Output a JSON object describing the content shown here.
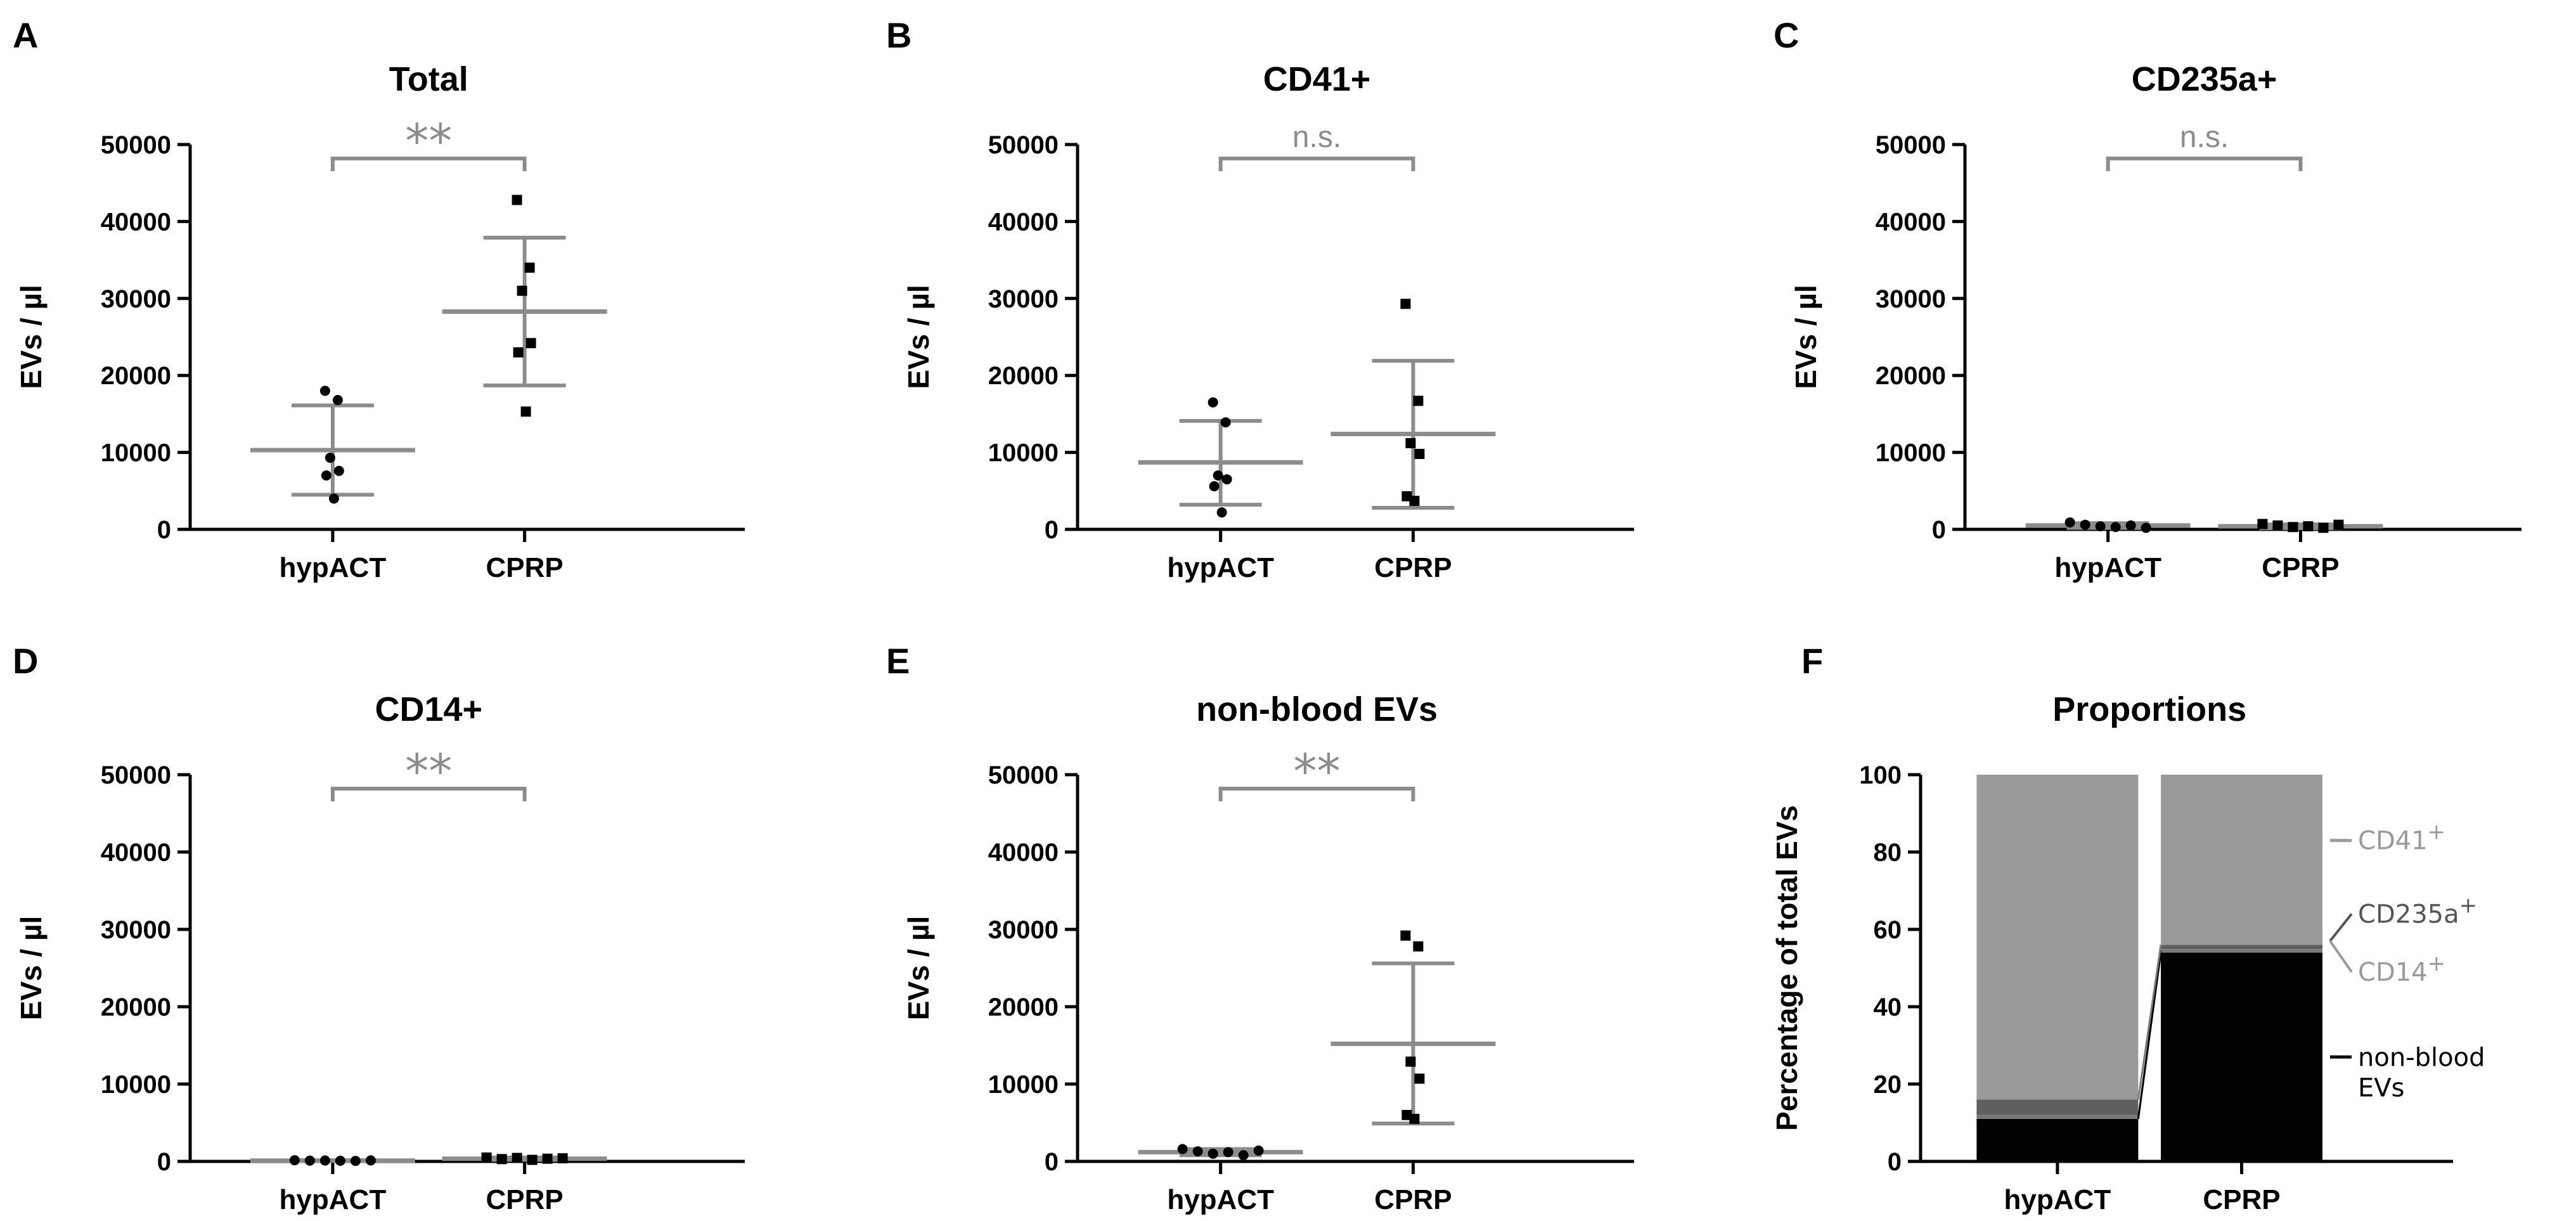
{
  "chart_data": [
    {
      "type": "scatter",
      "panel": "A",
      "title": "Total",
      "ylabel": "EVs / µl",
      "categories": [
        "hypACT",
        "CPRP"
      ],
      "ylim": [
        0,
        50000
      ],
      "yticks": [
        "0",
        "10000",
        "20000",
        "30000",
        "40000",
        "50000"
      ],
      "series": [
        {
          "name": "hypACT",
          "marker": "circle",
          "points": [
            18000,
            16800,
            9300,
            7600,
            7000,
            4000
          ],
          "mean": 10300,
          "sd_low": 4500,
          "sd_high": 16100
        },
        {
          "name": "CPRP",
          "marker": "square",
          "points": [
            42800,
            34000,
            31000,
            24200,
            23000,
            15300
          ],
          "mean": 28300,
          "sd_low": 18700,
          "sd_high": 37900
        }
      ],
      "significance": "**"
    },
    {
      "type": "scatter",
      "panel": "B",
      "title": "CD41+",
      "ylabel": "EVs / µl",
      "categories": [
        "hypACT",
        "CPRP"
      ],
      "ylim": [
        0,
        50000
      ],
      "yticks": [
        "0",
        "10000",
        "20000",
        "30000",
        "40000",
        "50000"
      ],
      "series": [
        {
          "name": "hypACT",
          "marker": "circle",
          "points": [
            16500,
            13900,
            7000,
            6500,
            5600,
            2200
          ],
          "mean": 8700,
          "sd_low": 3200,
          "sd_high": 14100
        },
        {
          "name": "CPRP",
          "marker": "square",
          "points": [
            29300,
            16700,
            11200,
            9800,
            4300,
            3700
          ],
          "mean": 12400,
          "sd_low": 2800,
          "sd_high": 21900
        }
      ],
      "significance": "n.s."
    },
    {
      "type": "scatter",
      "panel": "C",
      "title": "CD235a+",
      "ylabel": "EVs / µl",
      "categories": [
        "hypACT",
        "CPRP"
      ],
      "ylim": [
        0,
        50000
      ],
      "yticks": [
        "0",
        "10000",
        "20000",
        "30000",
        "40000",
        "50000"
      ],
      "series": [
        {
          "name": "hypACT",
          "marker": "circle",
          "points": [
            900,
            600,
            400,
            300,
            500,
            200
          ],
          "mean": 500,
          "sd_low": 200,
          "sd_high": 800
        },
        {
          "name": "CPRP",
          "marker": "square",
          "points": [
            700,
            500,
            300,
            400,
            200,
            600
          ],
          "mean": 400,
          "sd_low": 150,
          "sd_high": 650
        }
      ],
      "significance": "n.s."
    },
    {
      "type": "scatter",
      "panel": "D",
      "title": "CD14+",
      "ylabel": "EVs / µl",
      "categories": [
        "hypACT",
        "CPRP"
      ],
      "ylim": [
        0,
        50000
      ],
      "yticks": [
        "0",
        "10000",
        "20000",
        "30000",
        "40000",
        "50000"
      ],
      "series": [
        {
          "name": "hypACT",
          "marker": "circle",
          "points": [
            150,
            100,
            120,
            80,
            60,
            130
          ],
          "mean": 100,
          "sd_low": 50,
          "sd_high": 150
        },
        {
          "name": "CPRP",
          "marker": "square",
          "points": [
            500,
            300,
            450,
            200,
            350,
            400
          ],
          "mean": 350,
          "sd_low": 200,
          "sd_high": 500
        }
      ],
      "significance": "**"
    },
    {
      "type": "scatter",
      "panel": "E",
      "title": "non-blood EVs",
      "ylabel": "EVs / µl",
      "categories": [
        "hypACT",
        "CPRP"
      ],
      "ylim": [
        0,
        50000
      ],
      "yticks": [
        "0",
        "10000",
        "20000",
        "30000",
        "40000",
        "50000"
      ],
      "series": [
        {
          "name": "hypACT",
          "marker": "circle",
          "points": [
            1600,
            1300,
            1000,
            1200,
            800,
            1400
          ],
          "mean": 1200,
          "sd_low": 800,
          "sd_high": 1600
        },
        {
          "name": "CPRP",
          "marker": "square",
          "points": [
            29200,
            27800,
            12900,
            10700,
            6000,
            5500
          ],
          "mean": 15200,
          "sd_low": 4900,
          "sd_high": 25600
        }
      ],
      "significance": "**"
    },
    {
      "type": "bar",
      "stacked": true,
      "panel": "F",
      "title": "Proportions",
      "ylabel": "Percentage of total EVs",
      "categories": [
        "hypACT",
        "CPRP"
      ],
      "ylim": [
        0,
        100
      ],
      "yticks": [
        "0",
        "20",
        "40",
        "60",
        "80",
        "100"
      ],
      "series": [
        {
          "name": "non-blood EVs",
          "values": [
            11,
            54
          ],
          "color": "#000000"
        },
        {
          "name": "CD14+",
          "values": [
            1,
            1
          ],
          "color": "#7a7a7a"
        },
        {
          "name": "CD235a+",
          "values": [
            4,
            1
          ],
          "color": "#5f5f5f"
        },
        {
          "name": "CD41+",
          "values": [
            84,
            44
          ],
          "color": "#9a9a9a"
        }
      ],
      "legend": [
        {
          "label": "CD41",
          "sup": "+",
          "color": "#9a9a9a"
        },
        {
          "label": "CD235a",
          "sup": "+",
          "color": "#555555"
        },
        {
          "label": "CD14",
          "sup": "+",
          "color": "#9a9a9a"
        },
        {
          "label": "non-blood",
          "label2": "EVs",
          "color": "#000000"
        }
      ]
    }
  ],
  "colors": {
    "axis": "#000000",
    "mean_line": "#8c8c8c",
    "significance": "#8c8c8c",
    "points": "#000000"
  }
}
